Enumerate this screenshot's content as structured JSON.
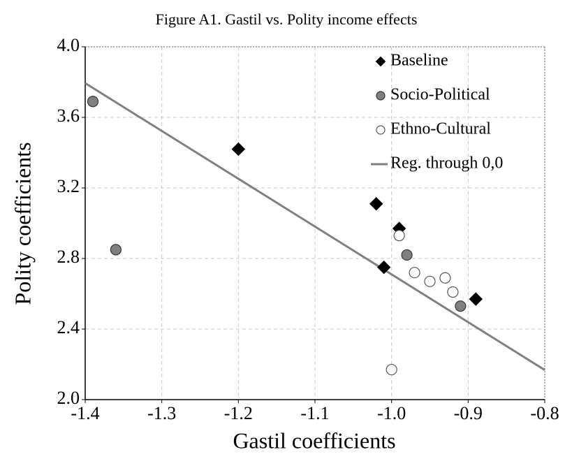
{
  "chart_data": {
    "type": "scatter",
    "title": "Figure A1. Gastil vs. Polity income effects",
    "x_label": "Gastil coefficients",
    "y_label": "Polity coefficients",
    "xlim": [
      -1.4,
      -0.8
    ],
    "xticks": [
      -1.4,
      -1.3,
      -1.2,
      -1.1,
      {
        "value": -1.0,
        "label": "-1.0"
      },
      -0.9,
      -0.8
    ],
    "ylim": [
      2.0,
      4.0
    ],
    "yticks": [
      {
        "value": 2.0,
        "label": "2.0"
      },
      2.4,
      2.8,
      3.2,
      3.6,
      {
        "value": 4.0,
        "label": "4.0"
      }
    ],
    "grid": true,
    "legend": "upper right",
    "series": [
      {
        "name": "Baseline",
        "marker": "diamond",
        "color": "#000000",
        "stroke": "#000000",
        "x": [
          -1.2,
          -1.02,
          -0.99,
          -1.01,
          -0.89
        ],
        "y": [
          3.42,
          3.11,
          2.97,
          2.75,
          2.57
        ]
      },
      {
        "name": "Socio-Political",
        "marker": "circle",
        "color": "#808080",
        "stroke": "#333333",
        "x": [
          -1.39,
          -1.36,
          -0.98,
          -0.91
        ],
        "y": [
          3.69,
          2.85,
          2.82,
          2.53
        ]
      },
      {
        "name": "Ethno-Cultural",
        "marker": "circle",
        "color": "#ffffff",
        "stroke": "#555555",
        "x": [
          -0.99,
          -0.97,
          -0.95,
          -0.93,
          -0.92,
          -1.0
        ],
        "y": [
          2.93,
          2.72,
          2.67,
          2.69,
          2.61,
          2.17
        ]
      }
    ],
    "regression": {
      "name": "Reg. through 0,0",
      "slope": -2.71,
      "color": "#808080"
    }
  }
}
